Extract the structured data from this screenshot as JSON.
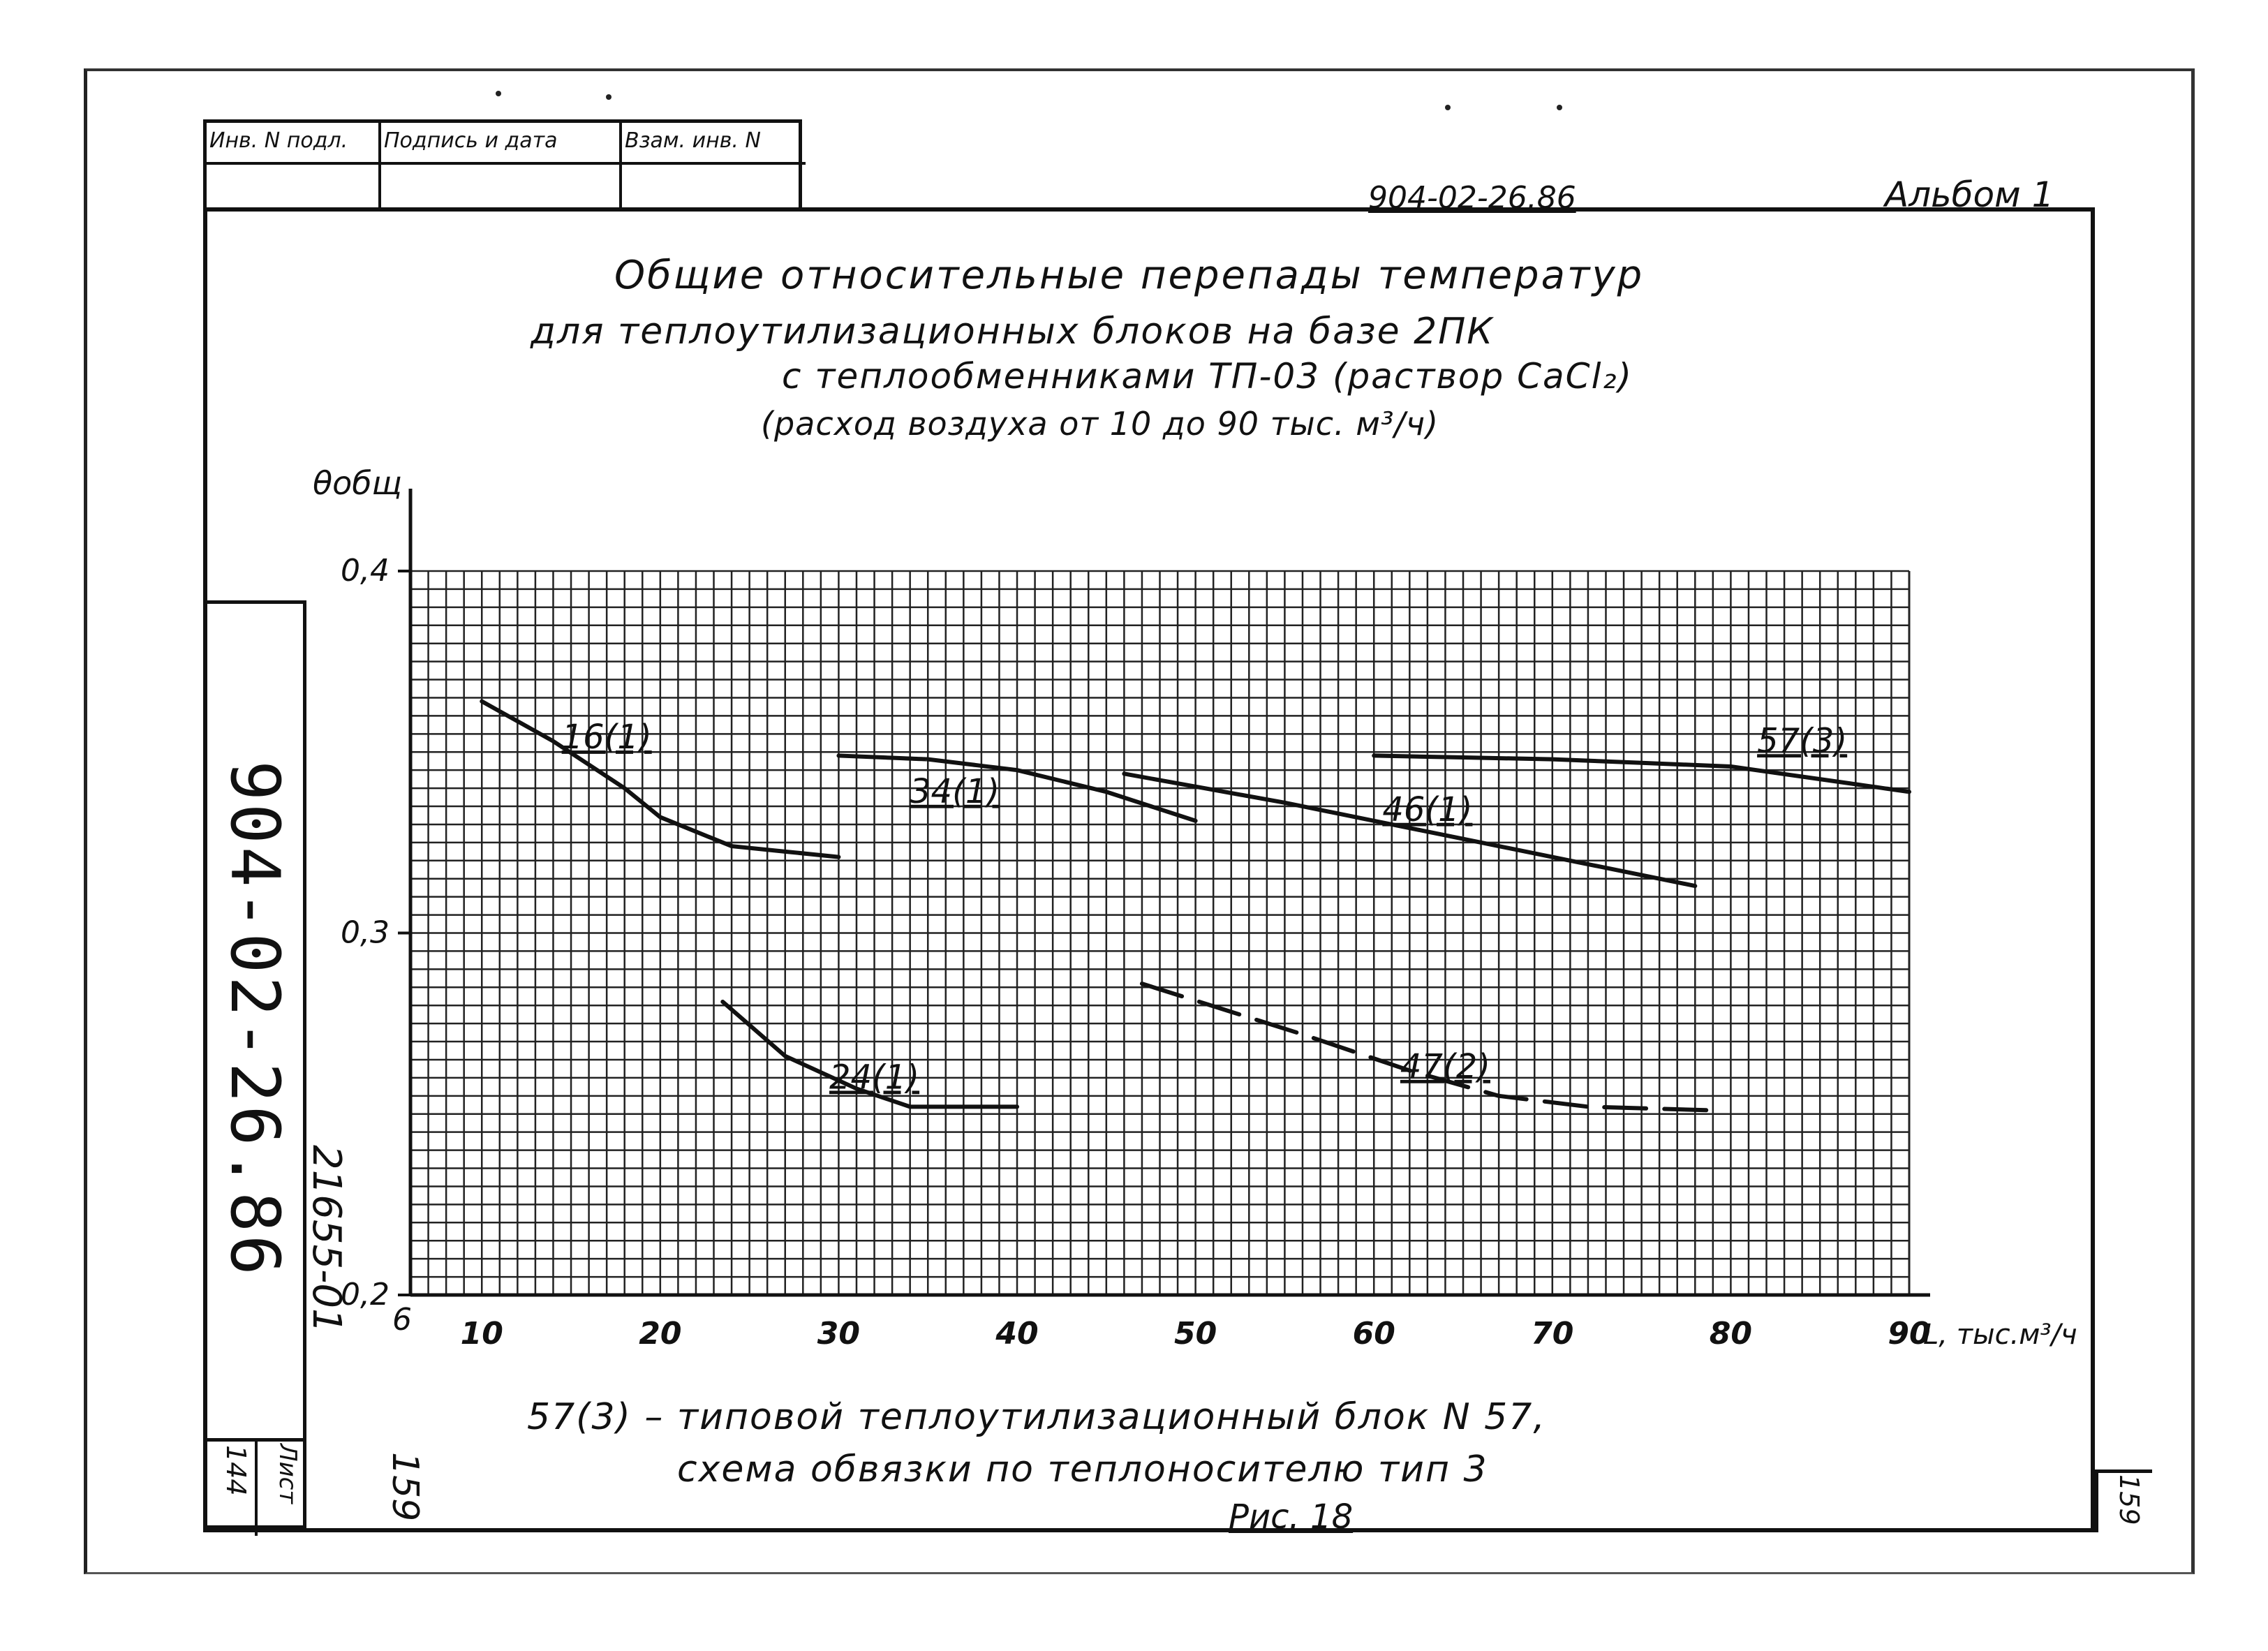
{
  "stamp": {
    "col1_header": "Инв. N подл.",
    "col2_header": "Подпись и дата",
    "col3_header": "Взам. инв. N"
  },
  "doc_code_top": "904-02-26.86",
  "album_label": "Альбом 1",
  "title": {
    "line1": "Общие относительные перепады температур",
    "line2": "для теплоутилизационных блоков на базе 2ПК",
    "line3": "с теплообменниками ТП-03 (раствор CaCl₂)",
    "line4": "(расход воздуха от 10 до 90 тыс. м³/ч)"
  },
  "side": {
    "vertical_code": "904-02-26.86",
    "inventory": "21655-01",
    "sheet_word": "Лист",
    "sheet_number": "144",
    "page_left": "159"
  },
  "page_corner": "159",
  "footer": {
    "legend_line1": "57(3) – типовой теплоутилизационный блок N 57,",
    "legend_line2": "схема обвязки по теплоносителю тип 3",
    "figure_label": "Рис. 18"
  },
  "chart_data": {
    "type": "line",
    "title": "",
    "ylabel": "θобщ",
    "xlabel": "L, тыс.м³/ч",
    "xlim": [
      6,
      90
    ],
    "ylim": [
      0.2,
      0.4
    ],
    "x_ticks": [
      10,
      20,
      30,
      40,
      50,
      60,
      70,
      80,
      90
    ],
    "x_origin_label": "6",
    "y_ticks": [
      0.2,
      0.3,
      0.4
    ],
    "y_tick_labels": [
      "0,2",
      "0,3",
      "0,4"
    ],
    "grid": true,
    "series": [
      {
        "name": "16(1)",
        "style": "solid",
        "x": [
          10,
          14,
          18,
          20,
          24,
          30
        ],
        "y": [
          0.364,
          0.353,
          0.34,
          0.332,
          0.324,
          0.321
        ],
        "label_at": [
          17,
          0.351
        ]
      },
      {
        "name": "34(1)",
        "style": "solid",
        "x": [
          30,
          35,
          40,
          45,
          50
        ],
        "y": [
          0.349,
          0.348,
          0.345,
          0.339,
          0.331
        ],
        "label_at": [
          36.5,
          0.336
        ]
      },
      {
        "name": "46(1)",
        "style": "solid",
        "x": [
          46,
          55,
          65,
          78
        ],
        "y": [
          0.344,
          0.336,
          0.326,
          0.313
        ],
        "label_at": [
          63,
          0.331
        ]
      },
      {
        "name": "57(3)",
        "style": "solid",
        "x": [
          60,
          70,
          80,
          90
        ],
        "y": [
          0.349,
          0.348,
          0.346,
          0.339
        ],
        "label_at": [
          84,
          0.35
        ]
      },
      {
        "name": "24(1)",
        "style": "solid",
        "x": [
          23.5,
          27,
          31,
          34,
          40
        ],
        "y": [
          0.281,
          0.266,
          0.257,
          0.252,
          0.252
        ],
        "label_at": [
          32,
          0.257
        ]
      },
      {
        "name": "47(2)",
        "style": "dashed",
        "x": [
          47,
          56,
          62,
          67,
          72,
          79
        ],
        "y": [
          0.286,
          0.272,
          0.262,
          0.255,
          0.252,
          0.251
        ],
        "label_at": [
          64,
          0.26
        ]
      }
    ]
  }
}
